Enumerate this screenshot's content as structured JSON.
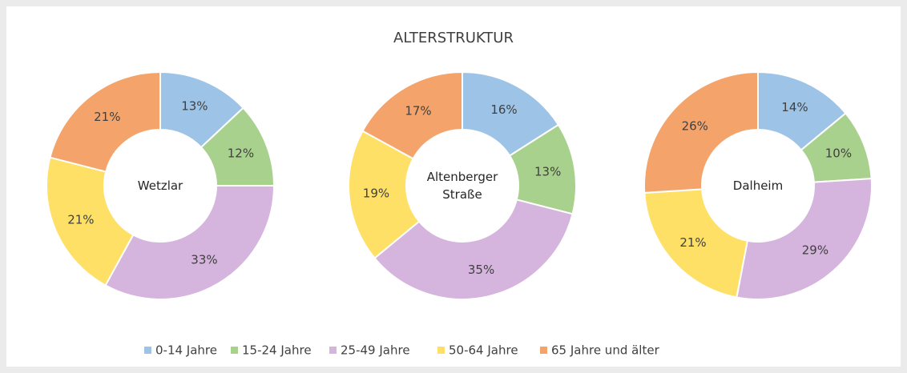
{
  "title": "ALTERSTRUKTUR",
  "legend": {
    "categories": [
      "0-14 Jahre",
      "15-24 Jahre",
      "25-49 Jahre",
      "50-64 Jahre",
      "65 Jahre und älter"
    ],
    "colors": [
      "#9dc3e6",
      "#a9d18e",
      "#d5b4dd",
      "#ffe066",
      "#f4a46a"
    ]
  },
  "chart_data": [
    {
      "type": "donut",
      "name": "Wetzlar",
      "values": [
        13,
        12,
        33,
        21,
        21
      ],
      "value_labels": [
        "13%",
        "12%",
        "33%",
        "21%",
        "21%"
      ]
    },
    {
      "type": "donut",
      "name": "Altenberger Straße",
      "values": [
        16,
        13,
        35,
        19,
        17
      ],
      "value_labels": [
        "16%",
        "13%",
        "35%",
        "19%",
        "17%"
      ]
    },
    {
      "type": "donut",
      "name": "Dalheim",
      "values": [
        14,
        10,
        29,
        21,
        26
      ],
      "value_labels": [
        "14%",
        "10%",
        "29%",
        "21%",
        "26%"
      ]
    }
  ]
}
